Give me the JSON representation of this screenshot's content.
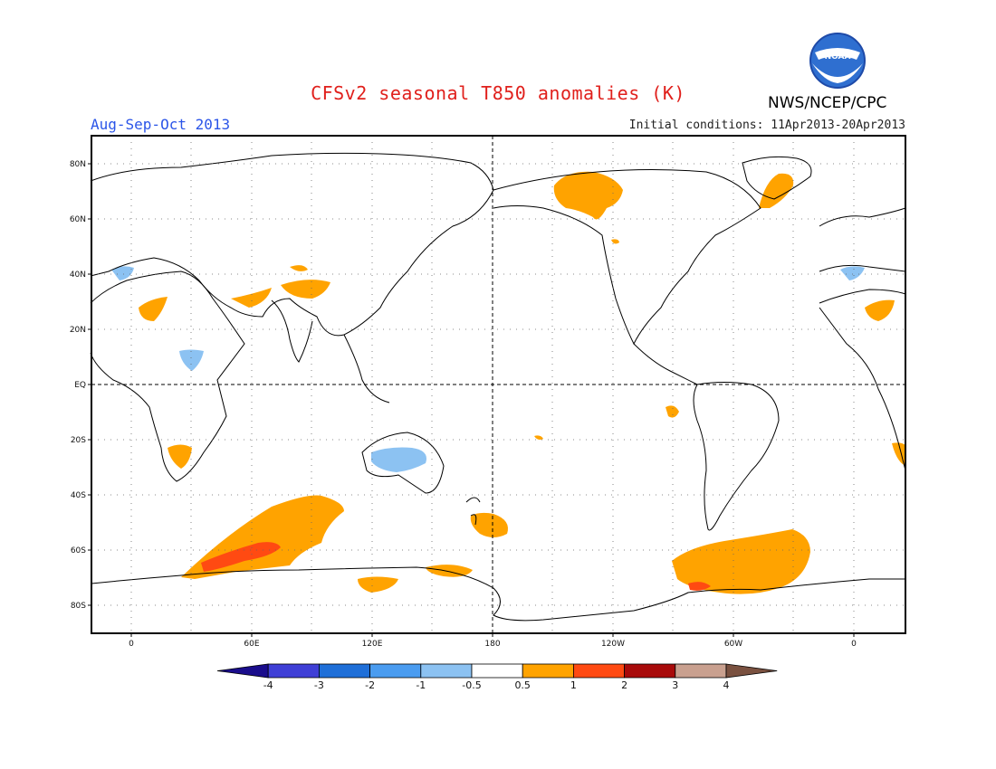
{
  "title": "CFSv2 seasonal T850 anomalies (K)",
  "season": "Aug-Sep-Oct 2013",
  "initial_conditions": "Initial conditions: 11Apr2013-20Apr2013",
  "agency": "NWS/NCEP/CPC",
  "logo": {
    "text": "NOAA",
    "icon": "noaa-logo-icon"
  },
  "map": {
    "projection": "cylindrical equidistant, centered on 180",
    "lat_ticks": [
      "80N",
      "60N",
      "40N",
      "20N",
      "EQ",
      "20S",
      "40S",
      "60S",
      "80S"
    ],
    "lon_ticks": [
      "0",
      "60E",
      "120E",
      "180",
      "120W",
      "60W",
      "0"
    ],
    "reference_lines": [
      "equator",
      "dateline"
    ]
  },
  "colorbar": {
    "labels": [
      "-4",
      "-3",
      "-2",
      "-1",
      "-0.5",
      "0.5",
      "1",
      "2",
      "3",
      "4"
    ],
    "colors": [
      "#1a0d8c",
      "#3f3fd6",
      "#1f6fd8",
      "#4a9cf0",
      "#8cc2f2",
      "#ffffff",
      "#ffa300",
      "#ff4a12",
      "#a80a0a",
      "#c9a08f",
      "#7a5140"
    ]
  }
}
